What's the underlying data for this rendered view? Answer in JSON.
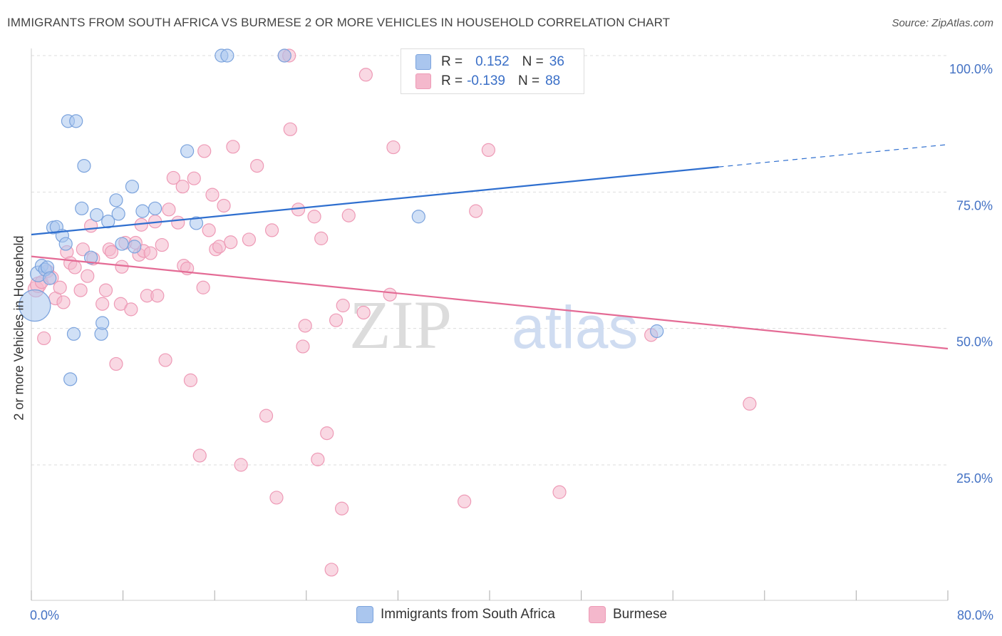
{
  "header": {
    "title": "IMMIGRANTS FROM SOUTH AFRICA VS BURMESE 2 OR MORE VEHICLES IN HOUSEHOLD CORRELATION CHART",
    "source": "Source: ZipAtlas.com"
  },
  "legend": {
    "rows": [
      {
        "r_label": "R =",
        "r_value": "0.152",
        "n_label": "N =",
        "n_value": "36"
      },
      {
        "r_label": "R =",
        "r_value": "-0.139",
        "n_label": "N =",
        "n_value": "88"
      }
    ]
  },
  "bottom_legend": {
    "items": [
      {
        "label": "Immigrants from South Africa"
      },
      {
        "label": "Burmese"
      }
    ]
  },
  "watermark": {
    "zip": "ZIP",
    "atlas": "atlas"
  },
  "colors": {
    "blue_fill": "#aac6ee",
    "blue_stroke": "#7ba3dd",
    "blue_line": "#2f6fcf",
    "pink_fill": "#f4b8cc",
    "pink_stroke": "#ee9ab6",
    "pink_line": "#e46b95",
    "axis_text": "#4472c4",
    "grid": "#dddddd"
  },
  "chart_data": {
    "type": "scatter",
    "title": "IMMIGRANTS FROM SOUTH AFRICA VS BURMESE 2 OR MORE VEHICLES IN HOUSEHOLD CORRELATION CHART",
    "xlabel": "",
    "ylabel": "2 or more Vehicles in Household",
    "xlim": [
      0,
      80
    ],
    "ylim": [
      0,
      105
    ],
    "x_tick_labels": [
      "0.0%",
      "80.0%"
    ],
    "y_ticks": [
      25,
      50,
      75,
      100
    ],
    "y_tick_labels": [
      "25.0%",
      "50.0%",
      "75.0%",
      "100.0%"
    ],
    "grid": true,
    "legend_position": "top-center",
    "series": [
      {
        "name": "Immigrants from South Africa",
        "r": 0.152,
        "n": 36,
        "trend": {
          "x0": 0,
          "y0": 67.2,
          "x1": 60,
          "y1": 79.6,
          "dash_to_x": 80,
          "dash_to_y": 83.7
        },
        "points": [
          [
            0.3,
            54.2,
            26
          ],
          [
            0.6,
            60.0,
            12
          ],
          [
            0.9,
            61.5,
            10
          ],
          [
            1.2,
            60.8,
            10
          ],
          [
            1.4,
            61.2,
            10
          ],
          [
            1.6,
            59.2,
            10
          ],
          [
            1.9,
            68.5,
            10
          ],
          [
            2.2,
            68.6,
            10
          ],
          [
            2.7,
            67.0,
            10
          ],
          [
            3.0,
            65.5,
            10
          ],
          [
            3.2,
            88.0,
            10
          ],
          [
            3.4,
            40.7,
            10
          ],
          [
            3.7,
            49.0,
            10
          ],
          [
            3.9,
            88.0,
            10
          ],
          [
            4.4,
            72.0,
            10
          ],
          [
            4.6,
            79.8,
            10
          ],
          [
            5.2,
            63.0,
            10
          ],
          [
            5.7,
            70.8,
            10
          ],
          [
            6.1,
            49.0,
            10
          ],
          [
            6.2,
            51.0,
            10
          ],
          [
            6.7,
            69.6,
            10
          ],
          [
            7.4,
            73.5,
            10
          ],
          [
            7.6,
            71.0,
            10
          ],
          [
            7.9,
            65.5,
            10
          ],
          [
            8.8,
            76.0,
            10
          ],
          [
            9.0,
            65.0,
            10
          ],
          [
            9.7,
            71.5,
            10
          ],
          [
            10.8,
            72.0,
            10
          ],
          [
            13.6,
            82.5,
            10
          ],
          [
            14.4,
            69.3,
            10
          ],
          [
            16.6,
            100.0,
            10
          ],
          [
            17.1,
            100.0,
            10
          ],
          [
            22.1,
            100.0,
            10
          ],
          [
            33.8,
            70.5,
            10
          ],
          [
            54.6,
            49.5,
            10
          ]
        ]
      },
      {
        "name": "Burmese",
        "r": -0.139,
        "n": 88,
        "trend": {
          "x0": 0,
          "y0": 63.2,
          "x1": 80,
          "y1": 46.3
        },
        "points": [
          [
            0.4,
            57.2,
            12
          ],
          [
            0.6,
            58.0,
            12
          ],
          [
            0.9,
            58.5,
            10
          ],
          [
            1.1,
            48.2,
            10
          ],
          [
            1.4,
            60.5,
            10
          ],
          [
            1.8,
            59.3,
            10
          ],
          [
            2.1,
            55.5,
            10
          ],
          [
            2.5,
            57.5,
            10
          ],
          [
            2.8,
            54.8,
            10
          ],
          [
            3.1,
            64.0,
            10
          ],
          [
            3.4,
            62.0,
            10
          ],
          [
            3.8,
            61.2,
            10
          ],
          [
            4.3,
            57.0,
            10
          ],
          [
            4.5,
            64.5,
            10
          ],
          [
            4.9,
            59.6,
            10
          ],
          [
            5.4,
            62.8,
            10
          ],
          [
            5.2,
            68.8,
            10
          ],
          [
            6.2,
            54.5,
            10
          ],
          [
            6.5,
            57.0,
            10
          ],
          [
            6.8,
            64.5,
            10
          ],
          [
            7.0,
            64.0,
            10
          ],
          [
            7.4,
            43.5,
            10
          ],
          [
            7.8,
            54.5,
            10
          ],
          [
            7.9,
            61.3,
            10
          ],
          [
            8.2,
            65.7,
            10
          ],
          [
            8.7,
            53.5,
            10
          ],
          [
            9.1,
            65.7,
            10
          ],
          [
            9.4,
            63.5,
            10
          ],
          [
            9.6,
            69.0,
            10
          ],
          [
            9.8,
            64.2,
            10
          ],
          [
            10.1,
            56.0,
            10
          ],
          [
            10.4,
            63.8,
            10
          ],
          [
            10.8,
            69.6,
            10
          ],
          [
            11.0,
            56.0,
            10
          ],
          [
            11.4,
            65.3,
            10
          ],
          [
            11.7,
            44.2,
            10
          ],
          [
            12.0,
            71.8,
            10
          ],
          [
            12.4,
            77.6,
            10
          ],
          [
            12.8,
            69.4,
            10
          ],
          [
            13.2,
            76.0,
            10
          ],
          [
            13.3,
            61.5,
            10
          ],
          [
            13.6,
            61.0,
            10
          ],
          [
            13.9,
            40.5,
            10
          ],
          [
            14.2,
            77.5,
            10
          ],
          [
            14.7,
            26.7,
            10
          ],
          [
            15.0,
            57.5,
            10
          ],
          [
            15.1,
            82.5,
            10
          ],
          [
            15.5,
            68.0,
            10
          ],
          [
            15.8,
            74.5,
            10
          ],
          [
            16.1,
            64.5,
            10
          ],
          [
            16.4,
            65.0,
            10
          ],
          [
            16.8,
            72.5,
            10
          ],
          [
            17.4,
            65.8,
            10
          ],
          [
            17.6,
            83.3,
            10
          ],
          [
            18.3,
            25.0,
            10
          ],
          [
            19.0,
            66.3,
            10
          ],
          [
            19.7,
            79.8,
            10
          ],
          [
            20.5,
            34.0,
            10
          ],
          [
            21.0,
            68.0,
            10
          ],
          [
            21.4,
            19.0,
            10
          ],
          [
            22.1,
            100.0,
            10
          ],
          [
            22.5,
            100.0,
            10
          ],
          [
            22.6,
            86.5,
            10
          ],
          [
            23.3,
            71.8,
            10
          ],
          [
            23.7,
            46.7,
            10
          ],
          [
            23.9,
            50.5,
            10
          ],
          [
            24.7,
            70.5,
            10
          ],
          [
            25.0,
            26.0,
            10
          ],
          [
            25.3,
            66.5,
            10
          ],
          [
            25.8,
            30.8,
            10
          ],
          [
            26.2,
            5.8,
            10
          ],
          [
            26.6,
            51.5,
            10
          ],
          [
            27.1,
            17.0,
            10
          ],
          [
            27.2,
            54.2,
            10
          ],
          [
            27.7,
            70.7,
            10
          ],
          [
            29.0,
            52.9,
            10
          ],
          [
            29.2,
            96.5,
            10
          ],
          [
            31.3,
            56.2,
            10
          ],
          [
            31.6,
            83.2,
            10
          ],
          [
            37.8,
            18.3,
            10
          ],
          [
            38.8,
            71.5,
            10
          ],
          [
            39.9,
            82.7,
            10
          ],
          [
            46.1,
            20.0,
            10
          ],
          [
            54.1,
            48.8,
            10
          ],
          [
            62.7,
            36.2,
            10
          ]
        ]
      }
    ]
  }
}
